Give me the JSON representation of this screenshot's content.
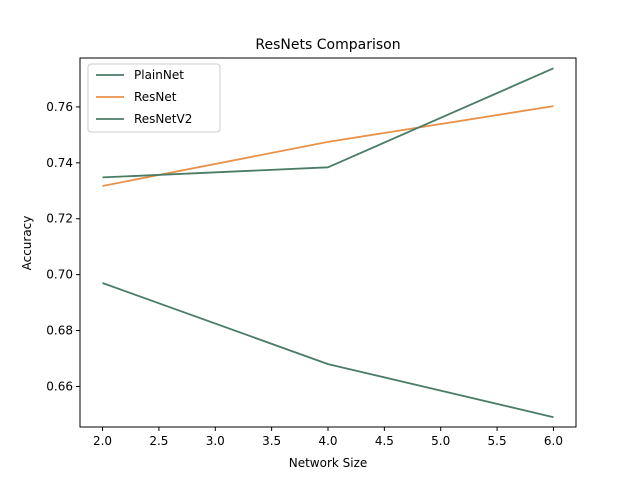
{
  "chart_data": {
    "type": "line",
    "title": "ResNets Comparison",
    "xlabel": "Network Size",
    "ylabel": "Accuracy",
    "xlim": [
      1.8,
      6.2
    ],
    "ylim": [
      0.6455,
      0.7775
    ],
    "x_ticks": [
      2.0,
      2.5,
      3.0,
      3.5,
      4.0,
      4.5,
      5.0,
      5.5,
      6.0
    ],
    "x_tick_labels": [
      "2.0",
      "2.5",
      "3.0",
      "3.5",
      "4.0",
      "4.5",
      "5.0",
      "5.5",
      "6.0"
    ],
    "y_ticks": [
      0.66,
      0.68,
      0.7,
      0.72,
      0.74,
      0.76
    ],
    "y_tick_labels": [
      "0.66",
      "0.68",
      "0.70",
      "0.72",
      "0.74",
      "0.76"
    ],
    "grid": false,
    "legend_position": "top-left",
    "x": [
      2,
      4,
      6
    ],
    "series": [
      {
        "name": "PlainNet",
        "color": "#4a7c66",
        "values": [
          0.697,
          0.668,
          0.649
        ]
      },
      {
        "name": "ResNet",
        "color": "#e8914a",
        "values": [
          0.7317,
          0.7475,
          0.7603
        ]
      },
      {
        "name": "ResNetV2",
        "color": "#4a7c66",
        "values": [
          0.7348,
          0.7384,
          0.7738
        ]
      }
    ]
  }
}
